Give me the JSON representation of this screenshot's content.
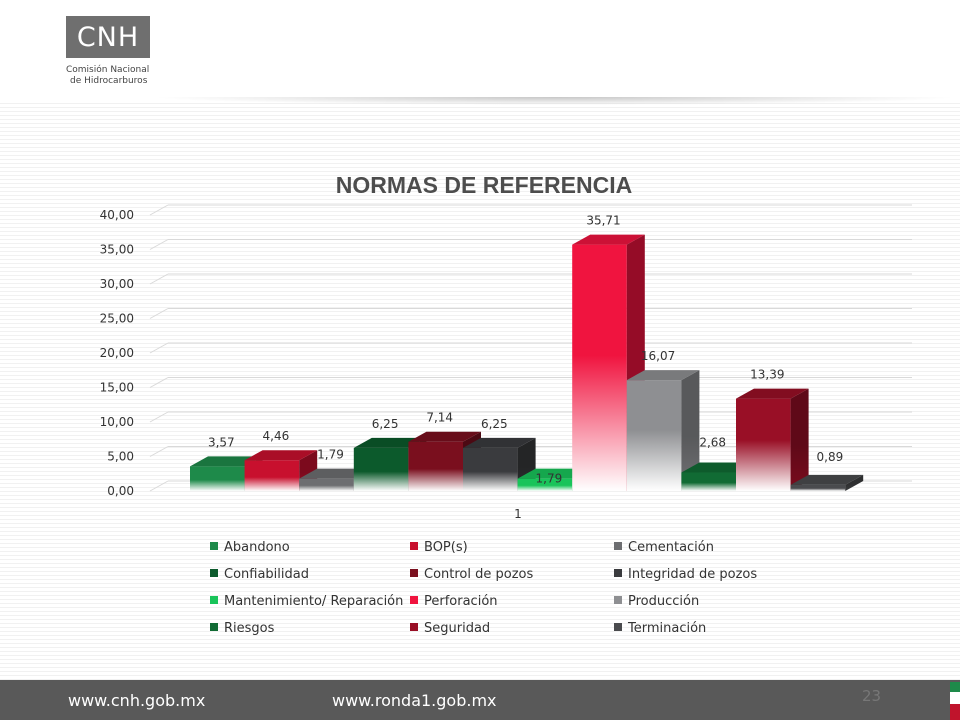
{
  "logo": {
    "mark": "CNH",
    "line1": "Comisión Nacional",
    "line2": "de Hidrocarburos"
  },
  "footer": {
    "url1": "www.cnh.gob.mx",
    "url2": "www.ronda1.gob.mx",
    "page_number": "23"
  },
  "colors": {
    "footer_bg": "#595959",
    "flag_green": "#1e8a4a",
    "flag_red": "#c0142c"
  },
  "chart_data": {
    "type": "bar",
    "title": "NORMAS DE REFERENCIA",
    "ylim": [
      0,
      40
    ],
    "yticks": [
      "0,00",
      "5,00",
      "10,00",
      "15,00",
      "20,00",
      "25,00",
      "30,00",
      "35,00",
      "40,00"
    ],
    "x_tick_label": "1",
    "grid": true,
    "legend_position": "bottom",
    "series": [
      {
        "name": "Abandono",
        "value": 3.57,
        "label": "3,57",
        "color": "#1e8a4a"
      },
      {
        "name": "BOP(s)",
        "value": 4.46,
        "label": "4,46",
        "color": "#c8102e"
      },
      {
        "name": "Cementación",
        "value": 1.79,
        "label": "1,79",
        "color": "#6d6e71"
      },
      {
        "name": "Confiabilidad",
        "value": 6.25,
        "label": "6,25",
        "color": "#0c5a2c"
      },
      {
        "name": "Control de pozos",
        "value": 7.14,
        "label": "7,14",
        "color": "#7a0f1e"
      },
      {
        "name": "Integridad de pozos",
        "value": 6.25,
        "label": "6,25",
        "color": "#3a3b3e"
      },
      {
        "name": "Mantenimiento/ Reparación",
        "value": 1.79,
        "label": "1,79",
        "color": "#19c45a"
      },
      {
        "name": "Perforación",
        "value": 35.71,
        "label": "35,71",
        "color": "#f0143f"
      },
      {
        "name": "Producción",
        "value": 16.07,
        "label": "16,07",
        "color": "#8e8f92"
      },
      {
        "name": "Riesgos",
        "value": 2.68,
        "label": "2,68",
        "color": "#116b34"
      },
      {
        "name": "Seguridad",
        "value": 13.39,
        "label": "13,39",
        "color": "#990f26"
      },
      {
        "name": "Terminación",
        "value": 0.89,
        "label": "0,89",
        "color": "#4a4b4e"
      }
    ]
  }
}
